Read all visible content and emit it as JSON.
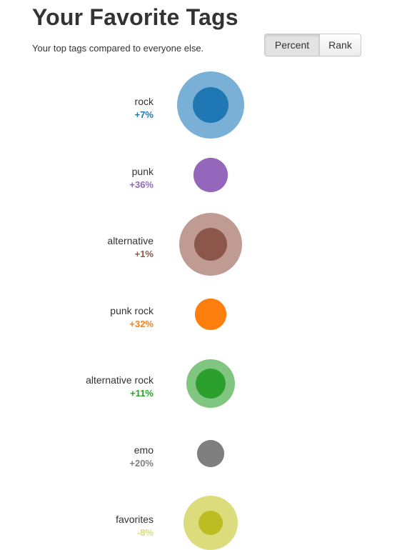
{
  "header": {
    "title": "Your Favorite Tags",
    "subtitle": "Your top tags compared to everyone else."
  },
  "toggle": {
    "percent_label": "Percent",
    "rank_label": "Rank",
    "selected": "Percent"
  },
  "tags": [
    {
      "name": "rock",
      "delta": "+7%",
      "color": "#1f77b4",
      "halo_color": "#7aafd6",
      "value_pct": 7
    },
    {
      "name": "punk",
      "delta": "+36%",
      "color": "#9467bd",
      "halo_color": "#9467bd",
      "value_pct": 36
    },
    {
      "name": "alternative",
      "delta": "+1%",
      "color": "#8c564b",
      "halo_color": "#bf9b93",
      "value_pct": 1
    },
    {
      "name": "punk rock",
      "delta": "+32%",
      "color": "#ff7f0e",
      "halo_color": "#ff7f0e",
      "value_pct": 32
    },
    {
      "name": "alternative rock",
      "delta": "+11%",
      "color": "#2ca02c",
      "halo_color": "#80c680",
      "value_pct": 11
    },
    {
      "name": "emo",
      "delta": "+20%",
      "color": "#7f7f7f",
      "halo_color": "#7f7f7f",
      "value_pct": 20
    },
    {
      "name": "favorites",
      "delta": "-8%",
      "color": "#bcbd22",
      "halo_color": "#dcdc7d",
      "value_pct": -8
    }
  ]
}
